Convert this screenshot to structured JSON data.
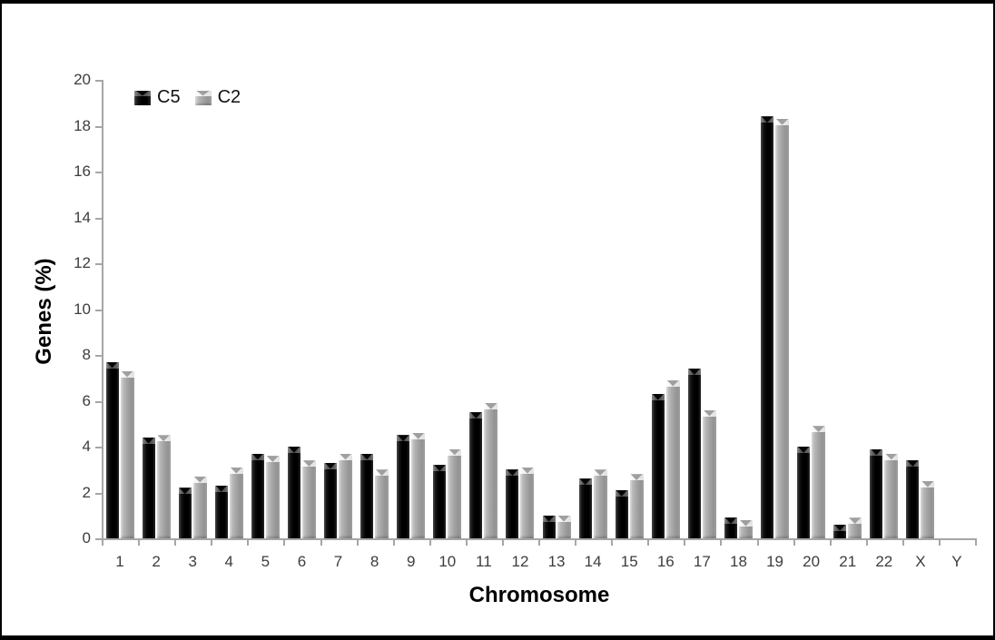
{
  "chart_data": {
    "type": "bar",
    "title": "",
    "xlabel": "Chromosome",
    "ylabel": "Genes (%)",
    "ylim": [
      0,
      20
    ],
    "ytick_step": 2,
    "grid": false,
    "legend_position": "top-left-inside",
    "categories": [
      "1",
      "2",
      "3",
      "4",
      "5",
      "6",
      "7",
      "8",
      "9",
      "10",
      "11",
      "12",
      "13",
      "14",
      "15",
      "16",
      "17",
      "18",
      "19",
      "20",
      "21",
      "22",
      "X",
      "Y"
    ],
    "series": [
      {
        "name": "C5",
        "color": "#0a0a0a",
        "values": [
          7.7,
          4.4,
          2.2,
          2.3,
          3.7,
          4.0,
          3.3,
          3.7,
          4.5,
          3.2,
          5.5,
          3.0,
          1.0,
          2.6,
          2.1,
          6.3,
          7.4,
          0.9,
          18.4,
          4.0,
          0.6,
          3.9,
          3.4,
          0
        ]
      },
      {
        "name": "C2",
        "color": "#a6a6a6",
        "values": [
          7.3,
          4.5,
          2.7,
          3.1,
          3.6,
          3.4,
          3.7,
          3.0,
          4.6,
          3.9,
          5.9,
          3.1,
          1.0,
          3.0,
          2.8,
          6.9,
          5.6,
          0.8,
          18.3,
          4.9,
          0.9,
          3.7,
          2.5,
          0
        ]
      }
    ],
    "ytick_labels": [
      "0",
      "2",
      "4",
      "6",
      "8",
      "10",
      "12",
      "14",
      "16",
      "18",
      "20"
    ]
  },
  "colors": {
    "axis_line": "#a6a6a6",
    "tick_text": "#3d3d3d",
    "axis_title_text": "#000000",
    "series_c5": "#0a0a0a",
    "series_c2": "#a6a6a6",
    "background": "#ffffff",
    "frame_border": "#000000"
  }
}
